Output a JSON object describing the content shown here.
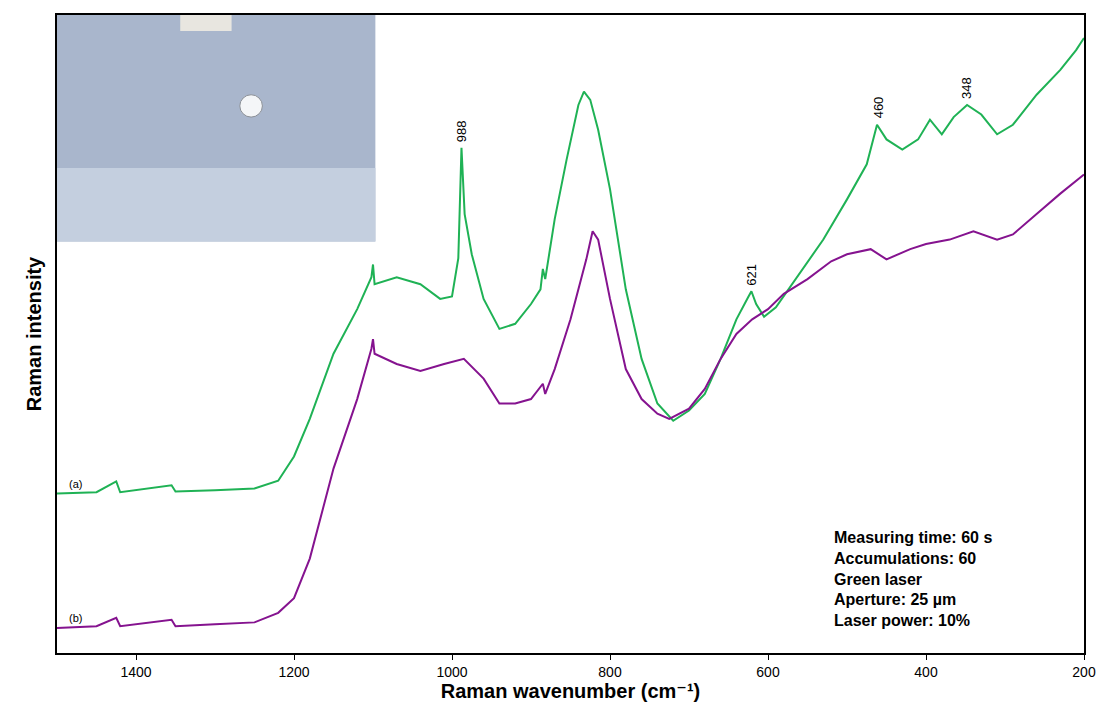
{
  "chart_data": {
    "type": "line",
    "x_label": "Raman wavenumber (cm⁻¹)",
    "y_label": "Raman intensity",
    "xlim": [
      1500,
      200
    ],
    "xticks": [
      1400,
      1200,
      1000,
      800,
      600,
      400,
      200
    ],
    "ylim": [
      0,
      100
    ],
    "yticks": [],
    "tick_labels": "x",
    "grid": false,
    "annotations": [
      "Measuring time: 60 s",
      "Accumulations: 60",
      "Green laser",
      "Aperture: 25 µm",
      "Laser power: 10%"
    ],
    "series": [
      {
        "name": "(a)",
        "color": "#1fb255",
        "peak_labels": [
          988,
          621,
          460,
          348
        ],
        "x": [
          1500,
          1450,
          1425,
          1420,
          1355,
          1350,
          1300,
          1250,
          1220,
          1200,
          1180,
          1150,
          1120,
          1102,
          1100,
          1098,
          1070,
          1040,
          1015,
          1000,
          992,
          988,
          984,
          975,
          960,
          940,
          920,
          900,
          888,
          885,
          882,
          870,
          855,
          840,
          833,
          825,
          815,
          800,
          780,
          760,
          740,
          720,
          700,
          680,
          660,
          640,
          625,
          621,
          615,
          605,
          590,
          560,
          530,
          500,
          475,
          462,
          450,
          430,
          410,
          395,
          380,
          365,
          348,
          330,
          310,
          290,
          260,
          230,
          210,
          200
        ],
        "values": [
          25,
          25.2,
          26.9,
          25.2,
          26.3,
          25.3,
          25.5,
          25.8,
          27,
          30.8,
          36.7,
          46.9,
          53.9,
          58.9,
          60.9,
          57.8,
          58.9,
          57.8,
          55.5,
          55.9,
          61.9,
          79.2,
          68.8,
          62.5,
          55.5,
          50.8,
          51.6,
          54.7,
          57,
          60.2,
          58.6,
          68,
          77.3,
          85.9,
          88,
          86.7,
          82,
          72.7,
          57,
          46.1,
          39.1,
          36.4,
          38,
          40.6,
          46.1,
          52.3,
          55.8,
          56.7,
          54.7,
          52.7,
          54.2,
          59.4,
          64.8,
          71.1,
          76.6,
          82.8,
          80.5,
          78.9,
          80.5,
          83.6,
          81.3,
          84,
          85.9,
          84.4,
          81.3,
          82.8,
          87.5,
          91.4,
          94.5,
          96.4
        ]
      },
      {
        "name": "(b)",
        "color": "#85138f",
        "x": [
          1500,
          1450,
          1425,
          1420,
          1355,
          1350,
          1300,
          1250,
          1220,
          1200,
          1180,
          1150,
          1120,
          1102,
          1100,
          1098,
          1070,
          1040,
          1010,
          985,
          960,
          940,
          920,
          900,
          885,
          882,
          870,
          850,
          830,
          822,
          815,
          800,
          780,
          760,
          740,
          725,
          700,
          680,
          660,
          640,
          620,
          600,
          580,
          550,
          520,
          500,
          470,
          450,
          420,
          400,
          370,
          340,
          310,
          290,
          260,
          230,
          200
        ],
        "values": [
          3.9,
          4.2,
          5.5,
          4.2,
          5.2,
          4.2,
          4.5,
          4.8,
          6.3,
          8.6,
          14.8,
          28.9,
          39.8,
          47.7,
          49.2,
          46.9,
          45.3,
          44.2,
          45.3,
          46.1,
          43,
          39.1,
          39.1,
          39.8,
          42.2,
          40.6,
          44.5,
          52.3,
          61.7,
          66.1,
          64.8,
          55.5,
          44.5,
          39.8,
          37.5,
          36.7,
          38.3,
          41.4,
          46.1,
          50,
          52.3,
          53.9,
          56.3,
          58.6,
          61.4,
          62.5,
          63.3,
          61.7,
          63.3,
          64.1,
          64.8,
          66.1,
          64.8,
          65.6,
          68.8,
          72,
          75
        ]
      }
    ]
  }
}
